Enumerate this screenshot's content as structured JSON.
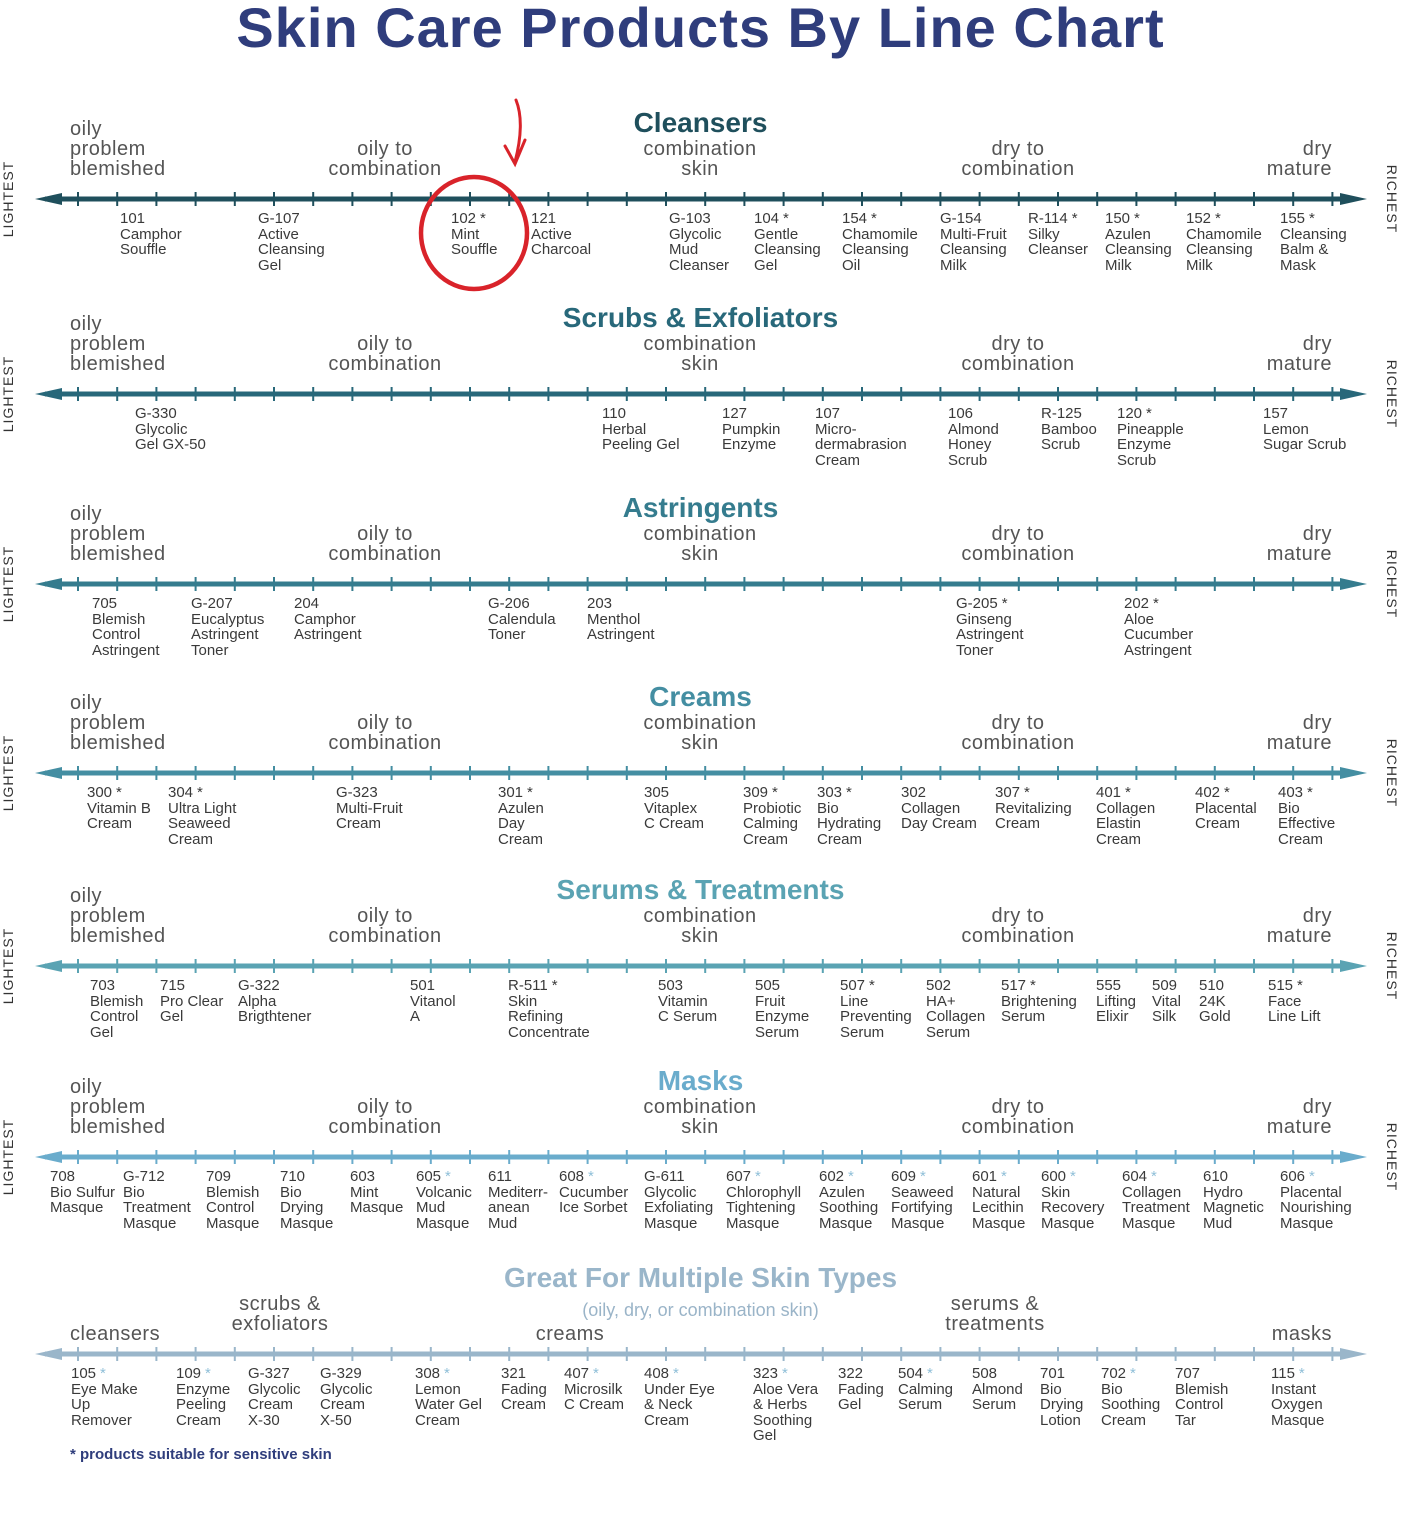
{
  "title": "Skin Care Products By Line Chart",
  "axis_left": "LIGHTEST",
  "axis_right": "RICHEST",
  "zones": [
    "oily\nproblem\nblemished",
    "oily to\ncombination",
    "combination\nskin",
    "dry to\ncombination",
    "dry\nmature"
  ],
  "footnote": "* products suitable for sensitive skin",
  "annotation": {
    "circle_color": "#d9232a",
    "arrow_icon": "hand-drawn-arrow",
    "highlighted_product": "102 Mint Souffle"
  },
  "sections": [
    {
      "title": "Cleansers",
      "color": "#1f4f5c",
      "products": [
        {
          "code": "101",
          "name": "Camphor\nSouffle"
        },
        {
          "code": "G-107",
          "name": "Active\nCleansing\nGel"
        },
        {
          "code": "102",
          "star": "*",
          "name": "Mint\nSouffle"
        },
        {
          "code": "121",
          "name": "Active\nCharcoal"
        },
        {
          "code": "G-103",
          "name": "Glycolic\nMud\nCleanser"
        },
        {
          "code": "104",
          "star": "*",
          "name": "Gentle\nCleansing\nGel"
        },
        {
          "code": "154",
          "star": "*",
          "name": "Chamomile\nCleansing\nOil"
        },
        {
          "code": "G-154",
          "name": "Multi-Fruit\nCleansing\nMilk"
        },
        {
          "code": "R-114",
          "star": "*",
          "name": "Silky\nCleanser"
        },
        {
          "code": "150",
          "star": "*",
          "name": "Azulen\nCleansing\nMilk"
        },
        {
          "code": "152",
          "star": "*",
          "name": "Chamomile\nCleansing\nMilk"
        },
        {
          "code": "155",
          "star": "*",
          "name": "Cleansing\nBalm &\nMask"
        }
      ]
    },
    {
      "title": "Scrubs & Exfoliators",
      "color": "#28687a",
      "products": [
        {
          "code": "G-330",
          "name": "Glycolic\nGel GX-50"
        },
        {
          "code": "110",
          "name": "Herbal\nPeeling Gel"
        },
        {
          "code": "127",
          "name": "Pumpkin\nEnzyme"
        },
        {
          "code": "107",
          "name": "Micro-\ndermabrasion\nCream"
        },
        {
          "code": "106",
          "name": "Almond\nHoney\nScrub"
        },
        {
          "code": "R-125",
          "name": "Bamboo\nScrub"
        },
        {
          "code": "120",
          "star": "*",
          "name": "Pineapple\nEnzyme\nScrub"
        },
        {
          "code": "157",
          "name": "Lemon\nSugar Scrub"
        }
      ]
    },
    {
      "title": "Astringents",
      "color": "#357c8e",
      "products": [
        {
          "code": "705",
          "name": "Blemish\nControl\nAstringent"
        },
        {
          "code": "G-207",
          "name": "Eucalyptus\nAstringent\nToner"
        },
        {
          "code": "204",
          "name": "Camphor\nAstringent"
        },
        {
          "code": "G-206",
          "name": "Calendula\nToner"
        },
        {
          "code": "203",
          "name": "Menthol\nAstringent"
        },
        {
          "code": "G-205",
          "star": "*",
          "name": "Ginseng\nAstringent\nToner"
        },
        {
          "code": "202",
          "star": "*",
          "name": "Aloe\nCucumber\nAstringent"
        }
      ]
    },
    {
      "title": "Creams",
      "color": "#448ea2",
      "products": [
        {
          "code": "300",
          "star": "*",
          "name": "Vitamin B\nCream"
        },
        {
          "code": "304",
          "star": "*",
          "name": "Ultra Light\nSeaweed\nCream"
        },
        {
          "code": "G-323",
          "name": "Multi-Fruit\nCream"
        },
        {
          "code": "301",
          "star": "*",
          "name": "Azulen\nDay\nCream"
        },
        {
          "code": "305",
          "name": "Vitaplex\nC Cream"
        },
        {
          "code": "309",
          "star": "*",
          "name": "Probiotic\nCalming\nCream"
        },
        {
          "code": "303",
          "star": "*",
          "name": "Bio\nHydrating\nCream"
        },
        {
          "code": "302",
          "name": "Collagen\nDay Cream"
        },
        {
          "code": "307",
          "star": "*",
          "name": "Revitalizing\nCream"
        },
        {
          "code": "401",
          "star": "*",
          "name": "Collagen\nElastin\nCream"
        },
        {
          "code": "402",
          "star": "*",
          "name": "Placental\nCream"
        },
        {
          "code": "403",
          "star": "*",
          "name": "Bio\nEffective\nCream"
        }
      ]
    },
    {
      "title": "Serums & Treatments",
      "color": "#5aa3b3",
      "products": [
        {
          "code": "703",
          "name": "Blemish\nControl\nGel"
        },
        {
          "code": "715",
          "name": "Pro Clear\nGel"
        },
        {
          "code": "G-322",
          "name": "Alpha\nBrigthtener"
        },
        {
          "code": "501",
          "name": "Vitanol\nA"
        },
        {
          "code": "R-511",
          "star": "*",
          "name": "Skin\nRefining\nConcentrate"
        },
        {
          "code": "503",
          "name": "Vitamin\nC Serum"
        },
        {
          "code": "505",
          "name": "Fruit\nEnzyme\nSerum"
        },
        {
          "code": "507",
          "star": "*",
          "name": "Line\nPreventing\nSerum"
        },
        {
          "code": "502",
          "name": "HA+\nCollagen\nSerum"
        },
        {
          "code": "517",
          "star": "*",
          "name": "Brightening\nSerum"
        },
        {
          "code": "555",
          "name": "Lifting\nElixir"
        },
        {
          "code": "509",
          "name": "Vital\nSilk"
        },
        {
          "code": "510",
          "name": "24K\nGold"
        },
        {
          "code": "515",
          "star": "*",
          "name": "Face\nLine Lift"
        }
      ]
    },
    {
      "title": "Masks",
      "color": "#6aaccc",
      "products": [
        {
          "code": "708",
          "name": "Bio Sulfur\nMasque"
        },
        {
          "code": "G-712",
          "name": "Bio\nTreatment\nMasque"
        },
        {
          "code": "709",
          "name": "Blemish\nControl\nMasque"
        },
        {
          "code": "710",
          "name": "Bio\nDrying\nMasque"
        },
        {
          "code": "603",
          "name": "Mint\nMasque"
        },
        {
          "code": "605",
          "star": "*",
          "name": "Volcanic\nMud\nMasque"
        },
        {
          "code": "611",
          "name": "Mediterr-\nanean\nMud"
        },
        {
          "code": "608",
          "star": "*",
          "name": "Cucumber\nIce Sorbet"
        },
        {
          "code": "G-611",
          "name": "Glycolic\nExfoliating\nMasque"
        },
        {
          "code": "607",
          "star": "*",
          "name": "Chlorophyll\nTightening\nMasque"
        },
        {
          "code": "602",
          "star": "*",
          "name": "Azulen\nSoothing\nMasque"
        },
        {
          "code": "609",
          "star": "*",
          "name": "Seaweed\nFortifying\nMasque"
        },
        {
          "code": "601",
          "star": "*",
          "name": "Natural\nLecithin\nMasque"
        },
        {
          "code": "600",
          "star": "*",
          "name": "Skin\nRecovery\nMasque"
        },
        {
          "code": "604",
          "star": "*",
          "name": "Collagen\nTreatment\nMasque"
        },
        {
          "code": "610",
          "name": "Hydro\nMagnetic\nMud"
        },
        {
          "code": "606",
          "star": "*",
          "name": "Placental\nNourishing\nMasque"
        }
      ]
    },
    {
      "title": "Great For Multiple Skin Types",
      "subtitle": "(oily, dry, or combination skin)",
      "color": "#9ab6ca",
      "zones": [
        "cleansers",
        "scrubs &\nexfoliators",
        "creams",
        "serums &\ntreatments",
        "masks"
      ],
      "products": [
        {
          "code": "105",
          "star": "*",
          "name": "Eye Make\nUp\nRemover"
        },
        {
          "code": "109",
          "star": "*",
          "name": "Enzyme\nPeeling\nCream"
        },
        {
          "code": "G-327",
          "name": "Glycolic\nCream\nX-30"
        },
        {
          "code": "G-329",
          "name": "Glycolic\nCream\nX-50"
        },
        {
          "code": "308",
          "star": "*",
          "name": "Lemon\nWater Gel\nCream"
        },
        {
          "code": "321",
          "name": "Fading\nCream"
        },
        {
          "code": "407",
          "star": "*",
          "name": "Microsilk\nC Cream"
        },
        {
          "code": "408",
          "star": "*",
          "name": "Under Eye\n& Neck\nCream"
        },
        {
          "code": "323",
          "star": "*",
          "name": "Aloe Vera\n& Herbs\nSoothing\nGel"
        },
        {
          "code": "322",
          "name": "Fading\nGel"
        },
        {
          "code": "504",
          "star": "*",
          "name": "Calming\nSerum"
        },
        {
          "code": "508",
          "name": "Almond\nSerum"
        },
        {
          "code": "701",
          "name": "Bio\nDrying\nLotion"
        },
        {
          "code": "702",
          "star": "*",
          "name": "Bio\nSoothing\nCream"
        },
        {
          "code": "707",
          "name": "Blemish\nControl\nTar"
        },
        {
          "code": "115",
          "star": "*",
          "name": "Instant\nOxygen\nMasque"
        }
      ]
    }
  ]
}
